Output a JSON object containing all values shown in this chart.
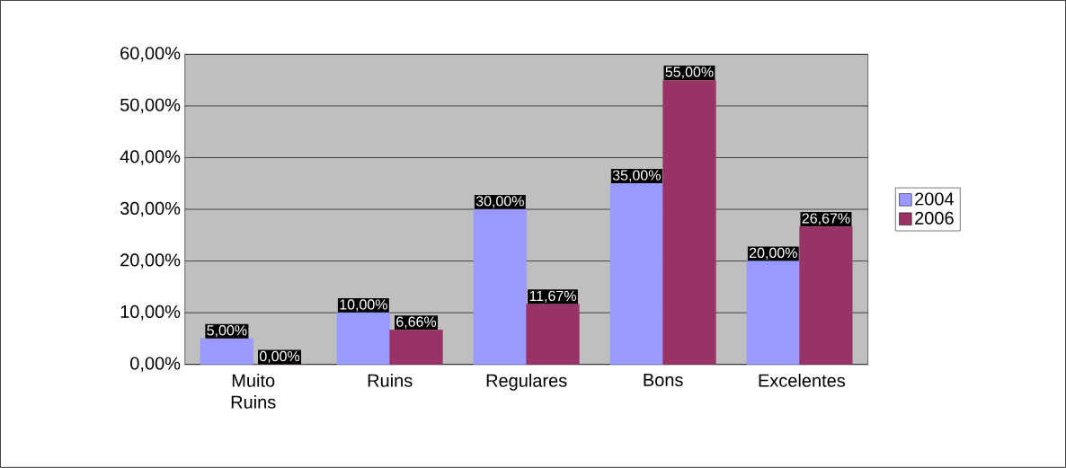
{
  "chart_data": {
    "type": "bar",
    "categories": [
      "Muito Ruins",
      "Ruins",
      "Regulares",
      "Bons",
      "Excelentes"
    ],
    "series": [
      {
        "name": "2004",
        "color": "#9999ff",
        "values": [
          5,
          10,
          30,
          35,
          20
        ],
        "value_labels": [
          "5,00%",
          "10,00%",
          "30,00%",
          "35,00%",
          "20,00%"
        ]
      },
      {
        "name": "2006",
        "color": "#993366",
        "values": [
          0,
          6.66,
          11.67,
          55,
          26.67
        ],
        "value_labels": [
          "0,00%",
          "6,66%",
          "11,67%",
          "55,00%",
          "26,67%"
        ]
      }
    ],
    "ylim": [
      0,
      60
    ],
    "yticks": [
      {
        "value": 0,
        "label": "0,00%"
      },
      {
        "value": 10,
        "label": "10,00%"
      },
      {
        "value": 20,
        "label": "20,00%"
      },
      {
        "value": 30,
        "label": "30,00%"
      },
      {
        "value": 40,
        "label": "40,00%"
      },
      {
        "value": 50,
        "label": "50,00%"
      },
      {
        "value": 60,
        "label": "60,00%"
      }
    ],
    "grid": "y",
    "legend": "right"
  }
}
